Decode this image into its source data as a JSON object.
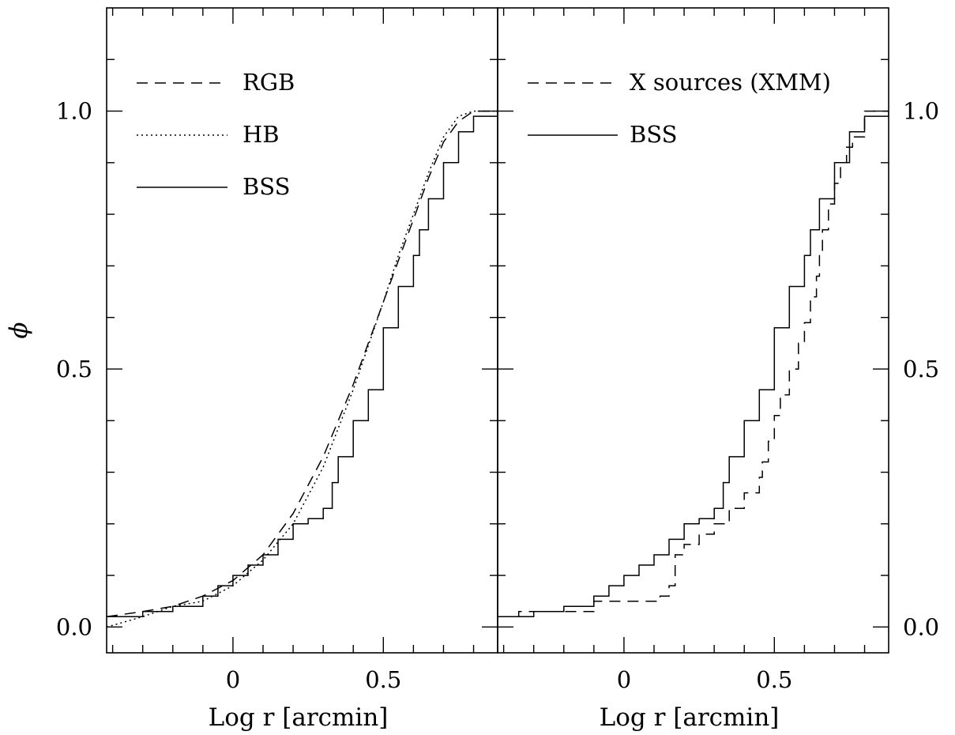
{
  "chart_data": [
    {
      "type": "line",
      "panel": "left",
      "xlabel": "Log r [arcmin]",
      "ylabel": "ϕ",
      "xlim": [
        -0.42,
        0.88
      ],
      "ylim": [
        -0.05,
        1.2
      ],
      "x_ticks": [
        {
          "value": 0,
          "label": "0"
        },
        {
          "value": 0.5,
          "label": "0.5"
        }
      ],
      "y_ticks": [
        {
          "value": 0,
          "label": "0.0"
        },
        {
          "value": 0.5,
          "label": "0.5"
        },
        {
          "value": 1.0,
          "label": "1.0"
        }
      ],
      "legend_position": "top-left",
      "series": [
        {
          "name": "RGB",
          "style": "dashed",
          "x": [
            -0.42,
            -0.3,
            -0.2,
            -0.1,
            0.0,
            0.1,
            0.2,
            0.3,
            0.4,
            0.5,
            0.55,
            0.6,
            0.65,
            0.7,
            0.75,
            0.8,
            0.88
          ],
          "y": [
            0.02,
            0.03,
            0.04,
            0.06,
            0.09,
            0.14,
            0.22,
            0.33,
            0.47,
            0.63,
            0.71,
            0.79,
            0.87,
            0.94,
            0.98,
            1.0,
            1.0
          ]
        },
        {
          "name": "HB",
          "style": "dotted",
          "x": [
            -0.42,
            -0.3,
            -0.2,
            -0.1,
            0.0,
            0.1,
            0.2,
            0.3,
            0.4,
            0.5,
            0.55,
            0.6,
            0.65,
            0.7,
            0.75,
            0.8,
            0.88
          ],
          "y": [
            0.0,
            0.02,
            0.04,
            0.05,
            0.08,
            0.13,
            0.2,
            0.31,
            0.46,
            0.63,
            0.72,
            0.8,
            0.88,
            0.95,
            0.99,
            1.0,
            1.0
          ]
        },
        {
          "name": "BSS",
          "style": "solid-step",
          "x": [
            -0.42,
            -0.35,
            -0.3,
            -0.2,
            -0.15,
            -0.1,
            -0.05,
            0.0,
            0.05,
            0.1,
            0.15,
            0.2,
            0.25,
            0.3,
            0.33,
            0.35,
            0.4,
            0.45,
            0.5,
            0.55,
            0.6,
            0.62,
            0.65,
            0.7,
            0.75,
            0.8,
            0.88
          ],
          "y": [
            0.02,
            0.02,
            0.03,
            0.04,
            0.04,
            0.06,
            0.08,
            0.1,
            0.12,
            0.14,
            0.17,
            0.2,
            0.21,
            0.23,
            0.28,
            0.33,
            0.4,
            0.46,
            0.58,
            0.66,
            0.72,
            0.77,
            0.83,
            0.9,
            0.96,
            0.99,
            1.0
          ]
        }
      ]
    },
    {
      "type": "line",
      "panel": "right",
      "xlabel": "Log r [arcmin]",
      "ylabel": "",
      "xlim": [
        -0.42,
        0.88
      ],
      "ylim": [
        -0.05,
        1.2
      ],
      "x_ticks": [
        {
          "value": 0,
          "label": "0"
        },
        {
          "value": 0.5,
          "label": "0.5"
        }
      ],
      "y_ticks": [
        {
          "value": 0,
          "label": "0.0"
        },
        {
          "value": 0.5,
          "label": "0.5"
        },
        {
          "value": 1.0,
          "label": "1.0"
        }
      ],
      "legend_position": "top-left",
      "series": [
        {
          "name": "X sources (XMM)",
          "style": "dashed-step",
          "x": [
            -0.42,
            -0.35,
            -0.2,
            -0.1,
            0.0,
            0.1,
            0.12,
            0.15,
            0.17,
            0.2,
            0.25,
            0.3,
            0.35,
            0.4,
            0.45,
            0.46,
            0.48,
            0.5,
            0.52,
            0.55,
            0.58,
            0.6,
            0.62,
            0.64,
            0.65,
            0.66,
            0.68,
            0.7,
            0.72,
            0.74,
            0.76,
            0.8,
            0.88
          ],
          "y": [
            0.02,
            0.03,
            0.03,
            0.05,
            0.05,
            0.05,
            0.06,
            0.08,
            0.14,
            0.16,
            0.18,
            0.2,
            0.23,
            0.26,
            0.29,
            0.32,
            0.36,
            0.41,
            0.45,
            0.5,
            0.55,
            0.59,
            0.64,
            0.68,
            0.73,
            0.77,
            0.82,
            0.86,
            0.9,
            0.93,
            0.95,
            1.0,
            1.0
          ]
        },
        {
          "name": "BSS",
          "style": "solid-step",
          "x": [
            -0.42,
            -0.35,
            -0.3,
            -0.2,
            -0.15,
            -0.1,
            -0.05,
            0.0,
            0.05,
            0.1,
            0.15,
            0.2,
            0.25,
            0.3,
            0.33,
            0.35,
            0.4,
            0.45,
            0.5,
            0.55,
            0.6,
            0.62,
            0.65,
            0.7,
            0.75,
            0.8,
            0.88
          ],
          "y": [
            0.02,
            0.02,
            0.03,
            0.04,
            0.04,
            0.06,
            0.08,
            0.1,
            0.12,
            0.14,
            0.17,
            0.2,
            0.21,
            0.23,
            0.28,
            0.33,
            0.4,
            0.46,
            0.58,
            0.66,
            0.72,
            0.77,
            0.83,
            0.9,
            0.96,
            0.99,
            1.0
          ]
        }
      ]
    }
  ]
}
